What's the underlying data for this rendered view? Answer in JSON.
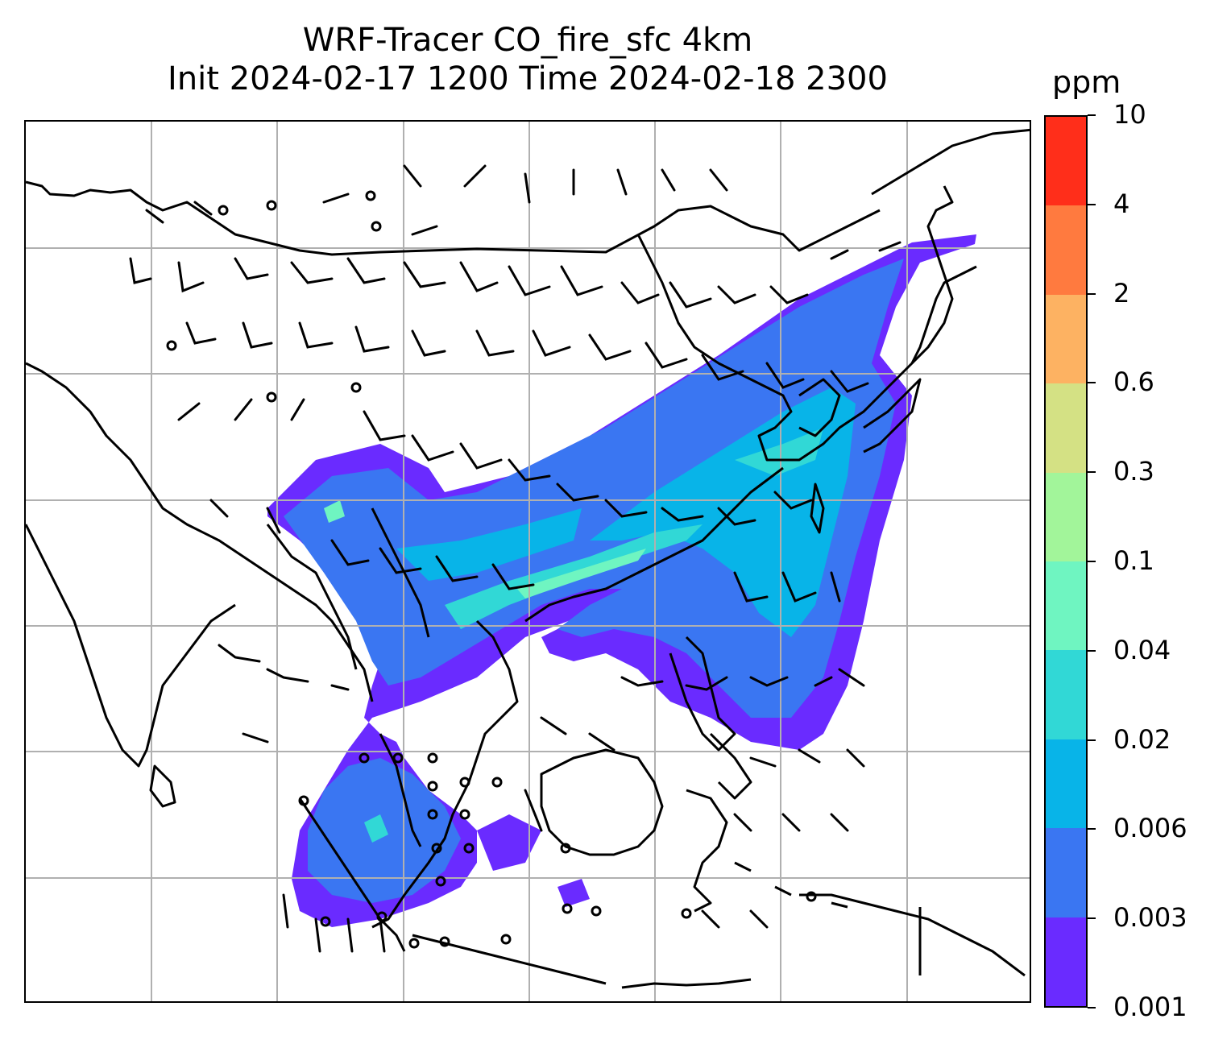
{
  "title": {
    "line1": "WRF-Tracer CO_fire_sfc 4km",
    "line2": "Init 2024-02-17 1200 Time 2024-02-18 2300"
  },
  "colorbar": {
    "unit": "ppm",
    "levels": [
      "0.001",
      "0.003",
      "0.006",
      "0.02",
      "0.04",
      "0.1",
      "0.3",
      "0.6",
      "2",
      "4",
      "10"
    ],
    "colors": [
      "#6a2bff",
      "#3a76f2",
      "#08b4e8",
      "#31d8d6",
      "#6ff5c1",
      "#a2f59a",
      "#d4e184",
      "#fdb262",
      "#ff7a3f",
      "#ff2e1a"
    ]
  },
  "map": {
    "gridlines": true,
    "coastlines": true,
    "wind_barbs": true,
    "plume_levels_shown": [
      "0.001",
      "0.003",
      "0.006",
      "0.02",
      "0.04",
      "0.1"
    ]
  }
}
